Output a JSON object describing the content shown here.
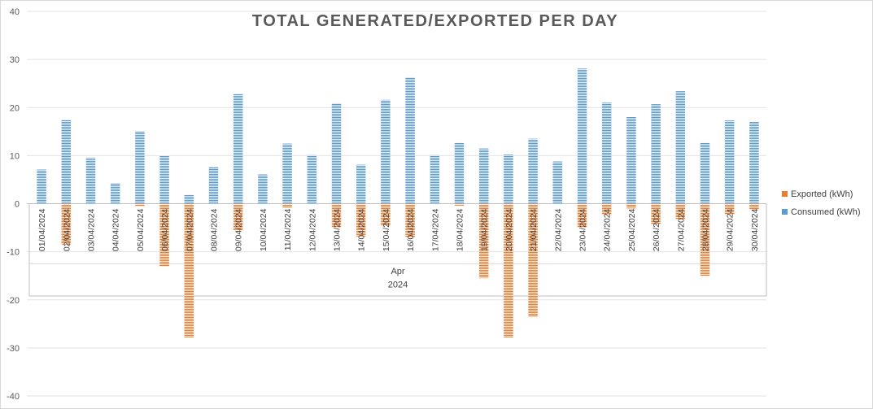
{
  "chart_data": {
    "type": "bar",
    "title": "TOTAL GENERATED/EXPORTED PER DAY",
    "xlabel": "",
    "ylabel": "",
    "ylim": [
      -40,
      40
    ],
    "yticks": [
      40,
      30,
      20,
      10,
      0,
      -10,
      -20,
      -30,
      -40
    ],
    "grid": true,
    "legend_position": "right",
    "category_group_labels": [
      "Apr",
      "2024"
    ],
    "categories": [
      "01/04/2024",
      "02/04/2024",
      "03/04/2024",
      "04/04/2024",
      "05/04/2024",
      "06/04/2024",
      "07/04/2024",
      "08/04/2024",
      "09/04/2024",
      "10/04/2024",
      "11/04/2024",
      "12/04/2024",
      "13/04/2024",
      "14/04/2024",
      "15/04/2024",
      "16/04/2024",
      "17/04/2024",
      "18/04/2024",
      "19/04/2024",
      "20/04/2024",
      "21/04/2024",
      "22/04/2024",
      "23/04/2024",
      "24/04/2024",
      "25/04/2024",
      "26/04/2024",
      "27/04/2024",
      "28/04/2024",
      "29/04/2024",
      "30/04/2024"
    ],
    "series": [
      {
        "name": "Exported (kWh)",
        "color": "#ED7D31",
        "values": [
          0,
          -8.5,
          0,
          0,
          -0.6,
          -13,
          -27.8,
          0,
          -5.5,
          0,
          -0.8,
          0,
          -5,
          -6.8,
          -4.5,
          -7,
          0,
          -0.4,
          -15.5,
          -27.8,
          -23.5,
          0,
          -5,
          -2.3,
          -1,
          -4.2,
          -3.3,
          -15,
          -2.2,
          -1.2
        ]
      },
      {
        "name": "Consumed (kWh)",
        "color": "#5B9BD5",
        "values": [
          7.1,
          17.5,
          9.5,
          4.3,
          15.1,
          9.9,
          1.9,
          7.7,
          22.9,
          6.1,
          12.5,
          10.1,
          20.9,
          8.1,
          21.6,
          26.3,
          10.1,
          12.7,
          11.5,
          10.2,
          13.5,
          8.8,
          28.1,
          21,
          18.1,
          20.7,
          23.4,
          12.7,
          17.3,
          17
        ]
      }
    ]
  }
}
